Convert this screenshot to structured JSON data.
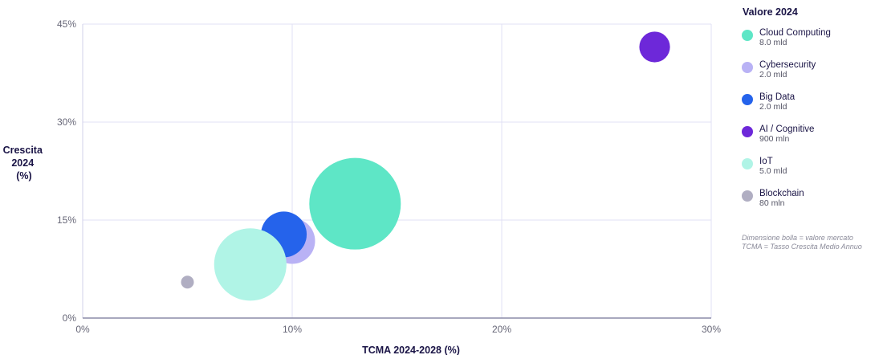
{
  "chart_data": {
    "type": "bubble",
    "xlabel": "TCMA 2024-2028 (%)",
    "ylabel": [
      "Crescita",
      "2024",
      "(%)"
    ],
    "xlim": [
      0,
      30
    ],
    "ylim": [
      0,
      45
    ],
    "xticks": [
      0,
      10,
      20,
      30
    ],
    "yticks": [
      0,
      15,
      30,
      45
    ],
    "xtick_labels": [
      "0%",
      "10%",
      "20%",
      "30%"
    ],
    "ytick_labels": [
      "0%",
      "15%",
      "30%",
      "45%"
    ],
    "grid": true,
    "legend_position": "right",
    "legend_title": "Valore 2024",
    "series": [
      {
        "name": "Cloud Computing",
        "value_label": "8.0 mld",
        "x": 13,
        "y": 17.5,
        "size": 8.0,
        "color": "#5ee6c6"
      },
      {
        "name": "Cybersecurity",
        "value_label": "2.0 mld",
        "x": 10,
        "y": 11.8,
        "size": 2.0,
        "color": "#b9b2f5"
      },
      {
        "name": "Big Data",
        "value_label": "2.0 mld",
        "x": 9.6,
        "y": 12.8,
        "size": 2.0,
        "color": "#2563eb"
      },
      {
        "name": "AI / Cognitive",
        "value_label": "900 mln",
        "x": 27.3,
        "y": 41.5,
        "size": 0.9,
        "color": "#6d28d9"
      },
      {
        "name": "IoT",
        "value_label": "5.0 mld",
        "x": 8,
        "y": 8.2,
        "size": 5.0,
        "color": "#b0f4e6"
      },
      {
        "name": "Blockchain",
        "value_label": "80 mln",
        "x": 5,
        "y": 5.5,
        "size": 0.08,
        "color": "#b0aec2"
      }
    ],
    "notes": [
      "Dimensione bolla = valore mercato",
      "TCMA = Tasso Crescita Medio Annuo"
    ]
  }
}
